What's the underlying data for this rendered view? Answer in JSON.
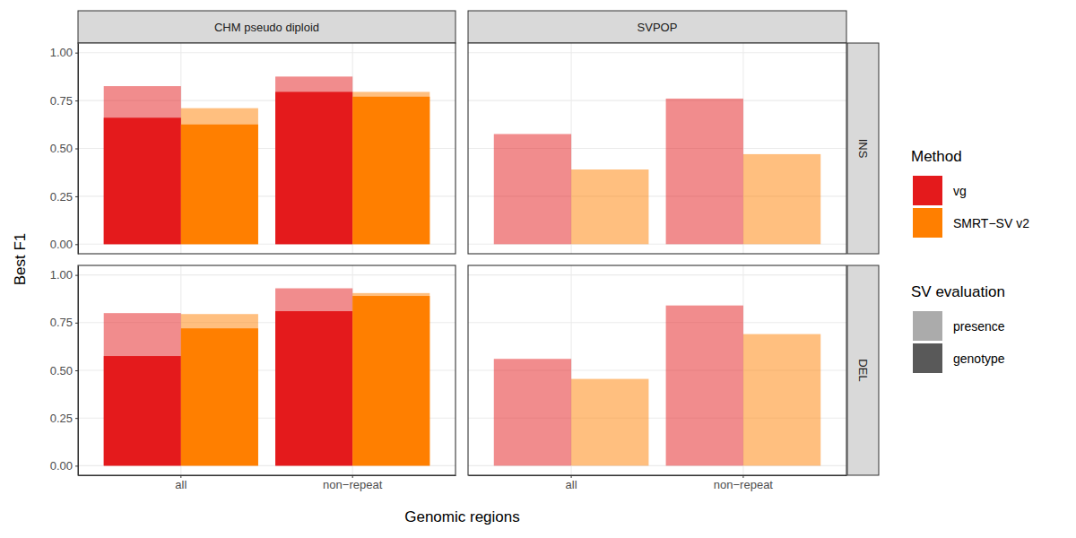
{
  "chart_data": {
    "type": "bar",
    "x_label": "Genomic regions",
    "y_label": "Best F1",
    "categories": [
      "all",
      "non−repeat"
    ],
    "ylim": [
      -0.05,
      1.05
    ],
    "yticks": [
      {
        "value": 0,
        "label": "0.00"
      },
      {
        "value": 0.25,
        "label": "0.25"
      },
      {
        "value": 0.5,
        "label": "0.50"
      },
      {
        "value": 0.75,
        "label": "0.75"
      },
      {
        "value": 1,
        "label": "1.00"
      }
    ],
    "grid": true,
    "legend": "right",
    "columns": [
      "CHM pseudo diploid",
      "SVPOP"
    ],
    "rows": [
      "INS",
      "DEL"
    ],
    "legend_groups": [
      {
        "title": "Method",
        "entries": [
          {
            "name": "vg",
            "color": "#e41a1c"
          },
          {
            "name": "SMRT−SV v2",
            "color": "#ff7f00"
          }
        ]
      },
      {
        "title": "SV evaluation",
        "entries": [
          {
            "name": "presence",
            "color": "#ababab"
          },
          {
            "name": "genotype",
            "color": "#595959"
          }
        ]
      }
    ],
    "panels": [
      {
        "column": 0,
        "row": 0,
        "series": [
          {
            "method": 0,
            "evaluation": 0,
            "values": [
              0.825,
              0.875
            ]
          },
          {
            "method": 1,
            "evaluation": 0,
            "values": [
              0.71,
              0.795
            ]
          },
          {
            "method": 0,
            "evaluation": 1,
            "values": [
              0.66,
              0.795
            ]
          },
          {
            "method": 1,
            "evaluation": 1,
            "values": [
              0.625,
              0.77
            ]
          }
        ]
      },
      {
        "column": 1,
        "row": 0,
        "series": [
          {
            "method": 0,
            "evaluation": 0,
            "values": [
              0.575,
              0.76
            ]
          },
          {
            "method": 1,
            "evaluation": 0,
            "values": [
              0.39,
              0.47
            ]
          }
        ]
      },
      {
        "column": 0,
        "row": 1,
        "series": [
          {
            "method": 0,
            "evaluation": 0,
            "values": [
              0.8,
              0.93
            ]
          },
          {
            "method": 1,
            "evaluation": 0,
            "values": [
              0.795,
              0.905
            ]
          },
          {
            "method": 0,
            "evaluation": 1,
            "values": [
              0.575,
              0.81
            ]
          },
          {
            "method": 1,
            "evaluation": 1,
            "values": [
              0.72,
              0.89
            ]
          }
        ]
      },
      {
        "column": 1,
        "row": 1,
        "series": [
          {
            "method": 0,
            "evaluation": 0,
            "values": [
              0.56,
              0.84
            ]
          },
          {
            "method": 1,
            "evaluation": 0,
            "values": [
              0.455,
              0.69
            ]
          }
        ]
      }
    ]
  }
}
